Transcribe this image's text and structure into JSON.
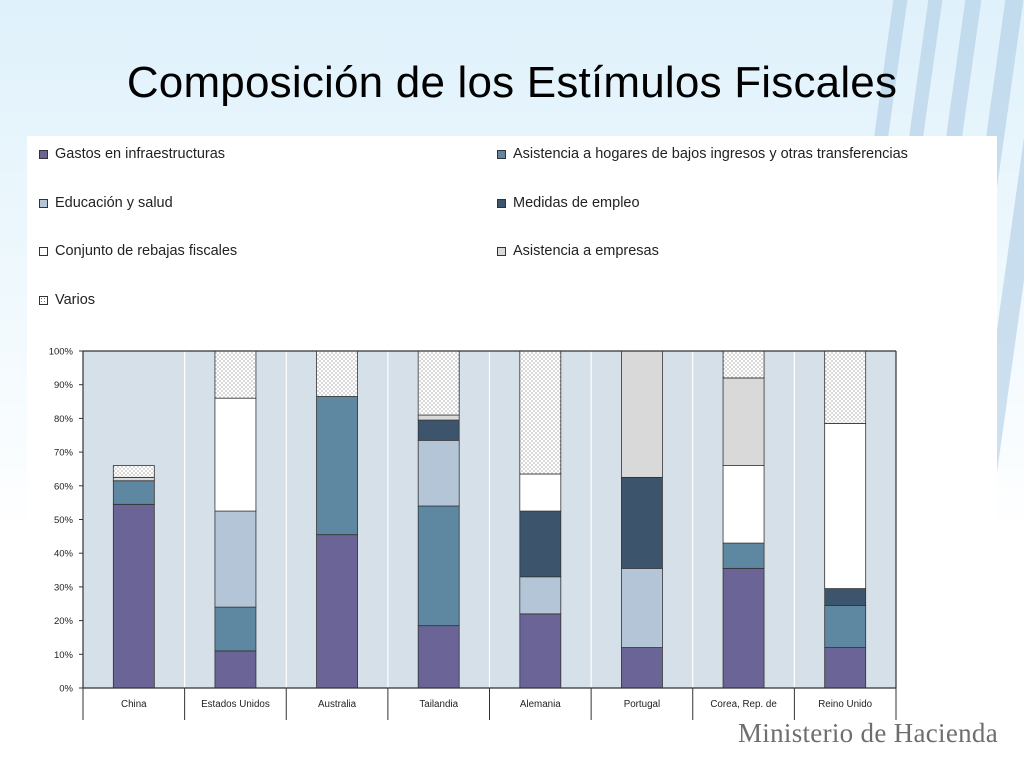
{
  "slide": {
    "title": "Composición de los Estímulos Fiscales",
    "footer": "Ministerio de Hacienda"
  },
  "chart_data": {
    "type": "bar",
    "stacked": true,
    "categories": [
      "China",
      "Estados Unidos",
      "Australia",
      "Tailandia",
      "Alemania",
      "Portugal",
      "Corea, Rep. de",
      "Reino Unido"
    ],
    "ylim": [
      0,
      100
    ],
    "yticks": [
      "0%",
      "10%",
      "20%",
      "30%",
      "40%",
      "50%",
      "60%",
      "70%",
      "80%",
      "90%",
      "100%"
    ],
    "legend_position": "top",
    "series": [
      {
        "name": "Gastos en infraestructuras",
        "color": "#6a6497",
        "pattern": "solid",
        "values": [
          54.5,
          11,
          45.5,
          18.5,
          22,
          12,
          35.5,
          12
        ]
      },
      {
        "name": "Asistencia a hogares de bajos ingresos y otras transferencias",
        "color": "#5e88a1",
        "pattern": "solid",
        "values": [
          7,
          13,
          41,
          35.5,
          0,
          0,
          7.5,
          12.5
        ]
      },
      {
        "name": "Educación y salud",
        "color": "#b3c5d6",
        "pattern": "solid",
        "values": [
          0,
          28.5,
          0,
          19.5,
          11,
          23.5,
          0,
          0
        ]
      },
      {
        "name": "Medidas de empleo",
        "color": "#3d556c",
        "pattern": "solid",
        "values": [
          0,
          0,
          0,
          6,
          19.5,
          27,
          0,
          5
        ]
      },
      {
        "name": "Conjunto de rebajas fiscales",
        "color": "#ffffff",
        "pattern": "solid",
        "values": [
          0,
          33.5,
          0,
          0,
          11,
          0,
          23,
          49
        ]
      },
      {
        "name": "Asistencia a empresas",
        "color": "#d9d9d9",
        "pattern": "solid",
        "values": [
          1,
          0,
          0,
          1.5,
          0,
          37.5,
          26,
          0
        ]
      },
      {
        "name": "Varios",
        "color": "#ffffff",
        "pattern": "dots",
        "values": [
          3.5,
          14,
          13.5,
          19,
          36.5,
          0,
          8,
          21.5
        ]
      }
    ],
    "colors": {
      "plot_background": "#d6e0e8",
      "grid": "#ffffff",
      "axis": "#333333"
    }
  }
}
